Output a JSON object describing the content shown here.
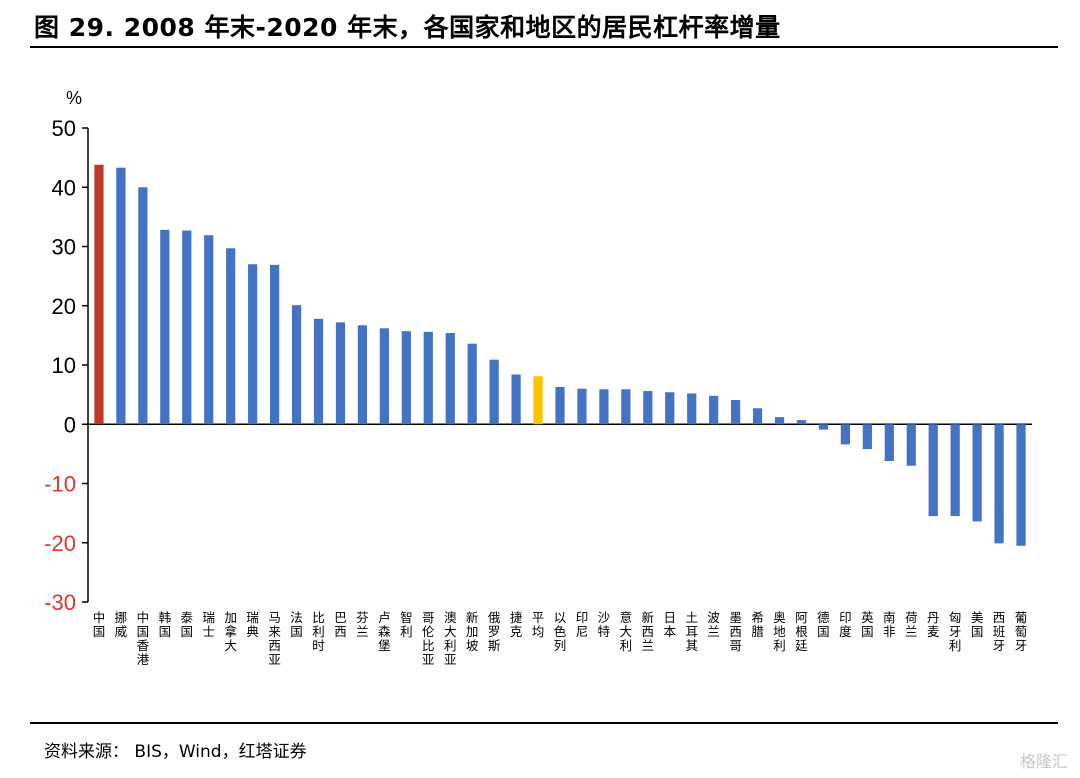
{
  "title": "图 29. 2008 年末-2020 年末，各国家和地区的居民杠杆率增量",
  "source": "资料来源：  BIS，Wind，红塔证券",
  "watermark": "格隆汇",
  "chart_data": {
    "type": "bar",
    "unit_label": "%",
    "ylim": [
      -30,
      50
    ],
    "yticks": [
      50,
      40,
      30,
      20,
      10,
      0,
      -10,
      -20,
      -30
    ],
    "tick_color_positive": "#000000",
    "tick_color_negative": "#e0362a",
    "grid": false,
    "legend": "none",
    "colors": {
      "default": "#4472c4",
      "china": "#c0392b",
      "average": "#ffc000"
    },
    "categories": [
      "中国",
      "挪威",
      "中国香港",
      "韩国",
      "泰国",
      "瑞士",
      "加拿大",
      "瑞典",
      "马来西亚",
      "法国",
      "比利时",
      "巴西",
      "芬兰",
      "卢森堡",
      "智利",
      "哥伦比亚",
      "澳大利亚",
      "新加坡",
      "俄罗斯",
      "捷克",
      "平均",
      "以色列",
      "印尼",
      "沙特",
      "意大利",
      "新西兰",
      "日本",
      "土耳其",
      "波兰",
      "墨西哥",
      "希腊",
      "奥地利",
      "阿根廷",
      "德国",
      "印度",
      "英国",
      "南非",
      "荷兰",
      "丹麦",
      "匈牙利",
      "美国",
      "西班牙",
      "葡萄牙"
    ],
    "values": [
      43.8,
      43.3,
      40.0,
      32.8,
      32.7,
      31.9,
      29.7,
      27.0,
      26.9,
      20.1,
      17.8,
      17.2,
      16.7,
      16.2,
      15.7,
      15.6,
      15.4,
      13.6,
      10.9,
      8.4,
      8.1,
      6.3,
      6.0,
      5.9,
      5.9,
      5.6,
      5.4,
      5.2,
      4.8,
      4.1,
      2.7,
      1.2,
      0.7,
      -0.9,
      -3.4,
      -4.2,
      -6.2,
      -7.0,
      -15.5,
      -15.5,
      -16.4,
      -20.1,
      -20.5
    ],
    "highlight": {
      "中国": "china",
      "平均": "average"
    }
  }
}
